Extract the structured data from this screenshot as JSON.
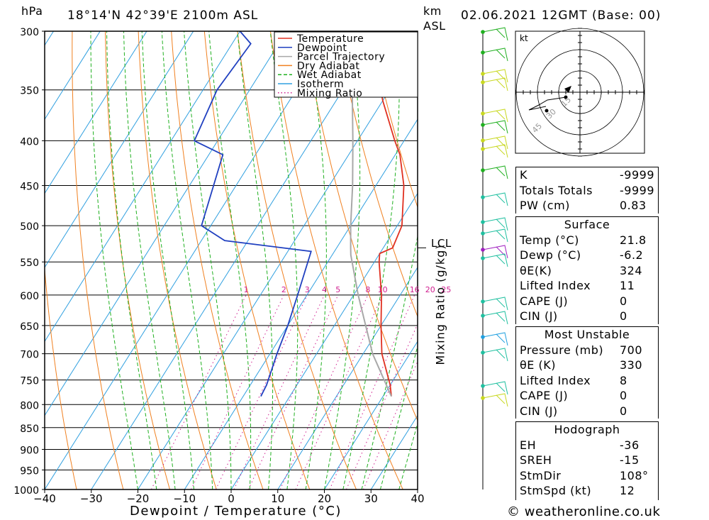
{
  "header": {
    "unit_hpa": "hPa",
    "location": "18°14'N  42°39'E  2100m  ASL",
    "unit_km": "km",
    "unit_asl": "ASL",
    "datetime": "02.06.2021  12GMT  (Base: 00)"
  },
  "footer": {
    "credit": "© weatheronline.co.uk"
  },
  "chart_data": {
    "type": "skew-t",
    "xlabel": "Dewpoint / Temperature (°C)",
    "ylabel": "Mixing Ratio (g/kg)",
    "x_ticks": [
      -40,
      -30,
      -20,
      -10,
      0,
      10,
      20,
      30,
      40
    ],
    "pressure_ticks": [
      300,
      350,
      400,
      450,
      500,
      550,
      600,
      650,
      700,
      750,
      800,
      850,
      900,
      950,
      1000
    ],
    "pressure_range": [
      1000,
      300
    ],
    "temp_range": [
      -40,
      40
    ],
    "mixing_ratio_labels": [
      "1",
      "2",
      "3",
      "4",
      "5",
      "8",
      "10",
      "16",
      "20",
      "25"
    ],
    "mixing_ratio_values": [
      1,
      2,
      3,
      4,
      5,
      8,
      10,
      16,
      20,
      25
    ],
    "lcl_label": "LCL",
    "lcl_pressure": 530,
    "legend": [
      "Temperature",
      "Dewpoint",
      "Parcel Trajectory",
      "Dry Adiabat",
      "Wet Adiabat",
      "Isotherm",
      "Mixing Ratio"
    ],
    "legend_colors": [
      "#e03020",
      "#2040c0",
      "#a8a8a8",
      "#f08020",
      "#20b020",
      "#30a0e0",
      "#d02090"
    ],
    "series": [
      {
        "name": "Temperature",
        "points": [
          [
            783,
            21.8
          ],
          [
            760,
            20
          ],
          [
            700,
            14
          ],
          [
            650,
            10
          ],
          [
            600,
            6
          ],
          [
            550,
            1
          ],
          [
            538,
            0
          ],
          [
            530,
            2
          ],
          [
            500,
            1
          ],
          [
            450,
            -4
          ],
          [
            415,
            -9
          ],
          [
            400,
            -12
          ],
          [
            360,
            -20
          ],
          [
            300,
            -32
          ]
        ]
      },
      {
        "name": "Dewpoint",
        "points": [
          [
            783,
            -6.2
          ],
          [
            760,
            -6.5
          ],
          [
            700,
            -8.5
          ],
          [
            650,
            -10
          ],
          [
            600,
            -12
          ],
          [
            535,
            -15
          ],
          [
            520,
            -35
          ],
          [
            500,
            -42
          ],
          [
            415,
            -47
          ],
          [
            400,
            -55
          ],
          [
            350,
            -57
          ],
          [
            310,
            -56
          ],
          [
            300,
            -60
          ]
        ]
      },
      {
        "name": "Parcel Trajectory",
        "points": [
          [
            783,
            21.8
          ],
          [
            700,
            12
          ],
          [
            600,
            1
          ],
          [
            540,
            -6
          ],
          [
            530,
            -7
          ],
          [
            500,
            -10
          ],
          [
            450,
            -15
          ],
          [
            400,
            -21
          ],
          [
            350,
            -28
          ],
          [
            300,
            -36
          ]
        ]
      }
    ]
  },
  "hodograph": {
    "unit": "kt",
    "ring_labels": [
      "15",
      "30",
      "45"
    ]
  },
  "indices": {
    "general": [
      {
        "key": "K",
        "value": "-9999"
      },
      {
        "key": "Totals Totals",
        "value": "-9999"
      },
      {
        "key": "PW (cm)",
        "value": "0.83"
      }
    ],
    "surface_title": "Surface",
    "surface": [
      {
        "key": "Temp (°C)",
        "value": "21.8"
      },
      {
        "key": "Dewp (°C)",
        "value": "-6.2"
      },
      {
        "key": "θE(K)",
        "value": "324"
      },
      {
        "key": "Lifted Index",
        "value": "11"
      },
      {
        "key": "CAPE (J)",
        "value": "0"
      },
      {
        "key": "CIN (J)",
        "value": "0"
      }
    ],
    "mu_title": "Most Unstable",
    "most_unstable": [
      {
        "key": "Pressure (mb)",
        "value": "700"
      },
      {
        "key": "θE (K)",
        "value": "330"
      },
      {
        "key": "Lifted Index",
        "value": "8"
      },
      {
        "key": "CAPE (J)",
        "value": "0"
      },
      {
        "key": "CIN (J)",
        "value": "0"
      }
    ],
    "hodo_title": "Hodograph",
    "hodograph": [
      {
        "key": "EH",
        "value": "-36"
      },
      {
        "key": "SREH",
        "value": "-15"
      },
      {
        "key": "StmDir",
        "value": "108°"
      },
      {
        "key": "StmSpd (kt)",
        "value": "12"
      }
    ]
  }
}
